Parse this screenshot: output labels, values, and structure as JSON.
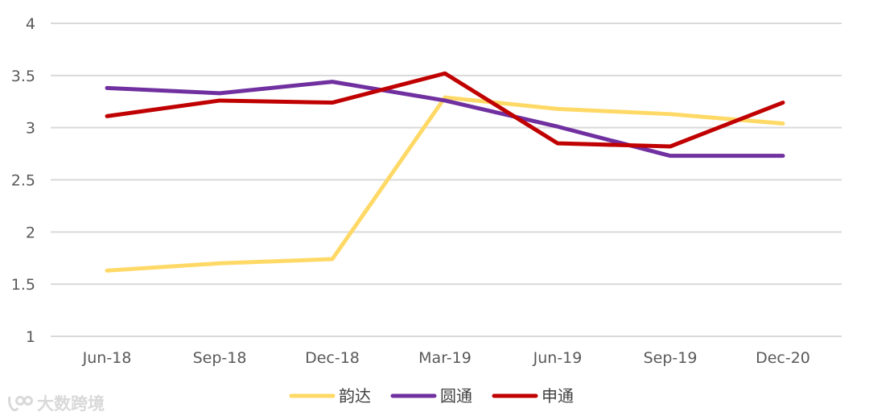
{
  "chart_data": {
    "type": "line",
    "categories": [
      "Jun-18",
      "Sep-18",
      "Dec-18",
      "Mar-19",
      "Jun-19",
      "Sep-19",
      "Dec-20"
    ],
    "series": [
      {
        "name": "韵达",
        "color": "#FFD966",
        "values": [
          1.63,
          1.7,
          1.74,
          3.29,
          3.18,
          3.13,
          3.04
        ]
      },
      {
        "name": "圆通",
        "color": "#7030A0",
        "values": [
          3.38,
          3.33,
          3.44,
          3.26,
          3.01,
          2.73,
          2.73
        ]
      },
      {
        "name": "申通",
        "color": "#C00000",
        "values": [
          3.11,
          3.26,
          3.24,
          3.52,
          2.85,
          2.82,
          3.24
        ]
      }
    ],
    "yticks": [
      "1",
      "1.5",
      "2",
      "2.5",
      "3",
      "3.5",
      "4"
    ],
    "ylim": [
      1,
      4
    ],
    "grid": true,
    "legend_position": "bottom"
  },
  "watermark": {
    "text": "大数跨境",
    "icon": "logo-icon"
  }
}
